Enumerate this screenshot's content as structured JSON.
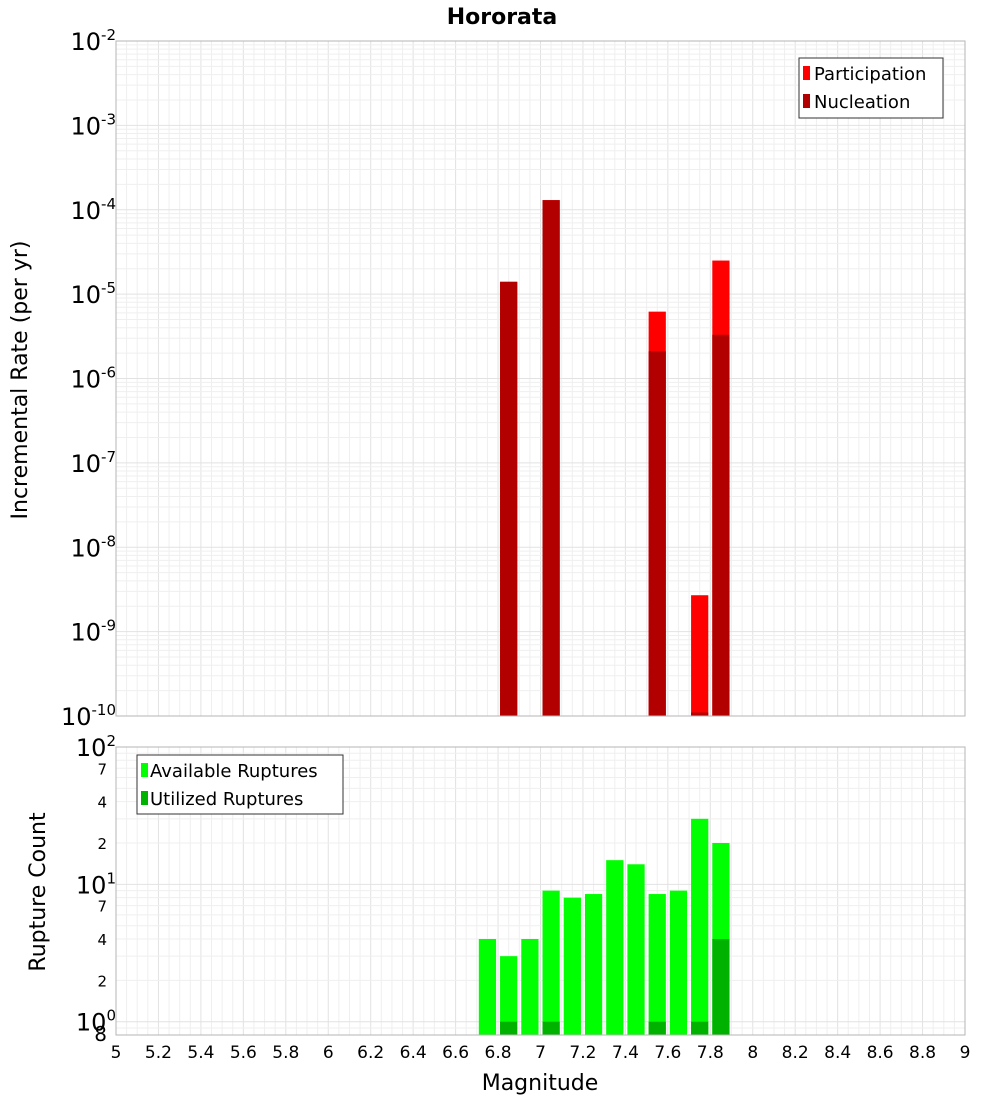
{
  "chart_data": [
    {
      "type": "bar",
      "title": "Hororata",
      "xlabel": "",
      "ylabel": "Incremental Rate (per yr)",
      "yscale": "log",
      "ylim": [
        1e-10,
        0.01
      ],
      "xlim": [
        5,
        9
      ],
      "bar_width": 0.1,
      "grid": true,
      "legend_position": "top-right",
      "y_ticks": [
        {
          "base": "10",
          "exp": "-10",
          "value": 1e-10
        },
        {
          "base": "10",
          "exp": "-9",
          "value": 1e-09
        },
        {
          "base": "10",
          "exp": "-8",
          "value": 1e-08
        },
        {
          "base": "10",
          "exp": "-7",
          "value": 1e-07
        },
        {
          "base": "10",
          "exp": "-6",
          "value": 1e-06
        },
        {
          "base": "10",
          "exp": "-5",
          "value": 1e-05
        },
        {
          "base": "10",
          "exp": "-4",
          "value": 0.0001
        },
        {
          "base": "10",
          "exp": "-3",
          "value": 0.001
        },
        {
          "base": "10",
          "exp": "-2",
          "value": 0.01
        }
      ],
      "series": [
        {
          "name": "Participation",
          "color": "#ff0000",
          "points": [
            {
              "x": 6.85,
              "y": 1.4e-05
            },
            {
              "x": 7.05,
              "y": 0.00013
            },
            {
              "x": 7.55,
              "y": 6.2e-06
            },
            {
              "x": 7.75,
              "y": 2.7e-09
            },
            {
              "x": 7.85,
              "y": 2.5e-05
            }
          ]
        },
        {
          "name": "Nucleation",
          "color": "#b20000",
          "points": [
            {
              "x": 6.85,
              "y": 1.4e-05
            },
            {
              "x": 7.05,
              "y": 0.00013
            },
            {
              "x": 7.55,
              "y": 2.1e-06
            },
            {
              "x": 7.75,
              "y": 1.1e-10
            },
            {
              "x": 7.85,
              "y": 3.3e-06
            }
          ]
        }
      ]
    },
    {
      "type": "bar",
      "title": "",
      "xlabel": "Magnitude",
      "ylabel": "Rupture Count",
      "yscale": "log",
      "ylim": [
        0.8,
        100
      ],
      "xlim": [
        5,
        9
      ],
      "bar_width": 0.1,
      "grid": true,
      "legend_position": "top-left",
      "x_ticks": [
        "5",
        "5.2",
        "5.4",
        "5.6",
        "5.8",
        "6",
        "6.2",
        "6.4",
        "6.6",
        "6.8",
        "7",
        "7.2",
        "7.4",
        "7.6",
        "7.8",
        "8",
        "8.2",
        "8.4",
        "8.6",
        "8.8",
        "9"
      ],
      "y_major_ticks": [
        {
          "base": "10",
          "exp": "0",
          "value": 1
        },
        {
          "base": "10",
          "exp": "1",
          "value": 10
        },
        {
          "base": "10",
          "exp": "2",
          "value": 100
        }
      ],
      "y_minor_ticks": [
        {
          "label": "8",
          "value": 0.8
        },
        {
          "label": "2",
          "value": 2
        },
        {
          "label": "4",
          "value": 4
        },
        {
          "label": "7",
          "value": 7
        },
        {
          "label": "2",
          "value": 20
        },
        {
          "label": "4",
          "value": 40
        },
        {
          "label": "7",
          "value": 70
        }
      ],
      "series": [
        {
          "name": "Available Ruptures",
          "color": "#00ff00",
          "points": [
            {
              "x": 6.75,
              "y": 4
            },
            {
              "x": 6.85,
              "y": 3
            },
            {
              "x": 6.95,
              "y": 4
            },
            {
              "x": 7.05,
              "y": 9
            },
            {
              "x": 7.15,
              "y": 8
            },
            {
              "x": 7.25,
              "y": 8.5
            },
            {
              "x": 7.35,
              "y": 15
            },
            {
              "x": 7.45,
              "y": 14
            },
            {
              "x": 7.55,
              "y": 8.5
            },
            {
              "x": 7.65,
              "y": 9
            },
            {
              "x": 7.75,
              "y": 30
            },
            {
              "x": 7.85,
              "y": 20
            }
          ]
        },
        {
          "name": "Utilized Ruptures",
          "color": "#00b200",
          "points": [
            {
              "x": 6.85,
              "y": 1
            },
            {
              "x": 7.05,
              "y": 1
            },
            {
              "x": 7.55,
              "y": 1
            },
            {
              "x": 7.75,
              "y": 1
            },
            {
              "x": 7.85,
              "y": 4
            }
          ]
        }
      ]
    }
  ]
}
